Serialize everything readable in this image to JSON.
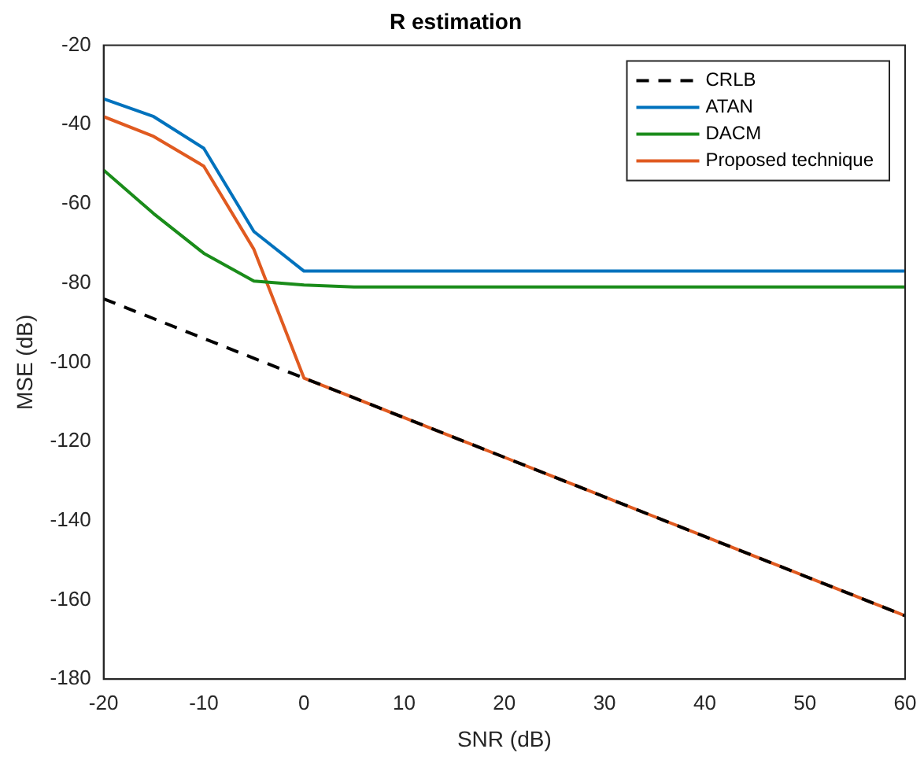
{
  "chart_data": {
    "type": "line",
    "title": "R estimation",
    "xlabel": "SNR (dB)",
    "ylabel": "MSE (dB)",
    "x": [
      -20,
      -15,
      -10,
      -5,
      0,
      5,
      10,
      15,
      20,
      25,
      30,
      35,
      40,
      45,
      50,
      55,
      60
    ],
    "series": [
      {
        "name": "CRLB",
        "color": "#000000",
        "line_style": "dashed",
        "values": [
          -84,
          -89,
          -94,
          -99,
          -104,
          -109,
          -114,
          -119,
          -124,
          -129,
          -134,
          -139,
          -144,
          -149,
          -154,
          -159,
          -164
        ]
      },
      {
        "name": "ATAN",
        "color": "#0072bd",
        "values": [
          -33.5,
          -38,
          -46,
          -67,
          -77,
          -77,
          -77,
          -77,
          -77,
          -77,
          -77,
          -77,
          -77,
          -77,
          -77,
          -77,
          -77
        ]
      },
      {
        "name": "DACM",
        "color": "#1a8c1a",
        "values": [
          -51.5,
          -62.5,
          -72.5,
          -79.5,
          -80.5,
          -81,
          -81,
          -81,
          -81,
          -81,
          -81,
          -81,
          -81,
          -81,
          -81,
          -81,
          -81
        ]
      },
      {
        "name": "Proposed technique",
        "color": "#e05a20",
        "values": [
          -38,
          -43,
          -50.5,
          -71.5,
          -104,
          -109,
          -114,
          -119,
          -124,
          -129,
          -134,
          -139,
          -144,
          -149,
          -154,
          -159,
          -164
        ]
      }
    ],
    "xlim": [
      -20,
      60
    ],
    "xticks": [
      -20,
      -10,
      0,
      10,
      20,
      30,
      40,
      50,
      60
    ],
    "ylim": [
      -180,
      -20
    ],
    "yticks": [
      -180,
      -160,
      -140,
      -120,
      -100,
      -80,
      -60,
      -40,
      -20
    ],
    "grid": false,
    "legend": "top right",
    "marker": "none",
    "line_style": "solid"
  }
}
